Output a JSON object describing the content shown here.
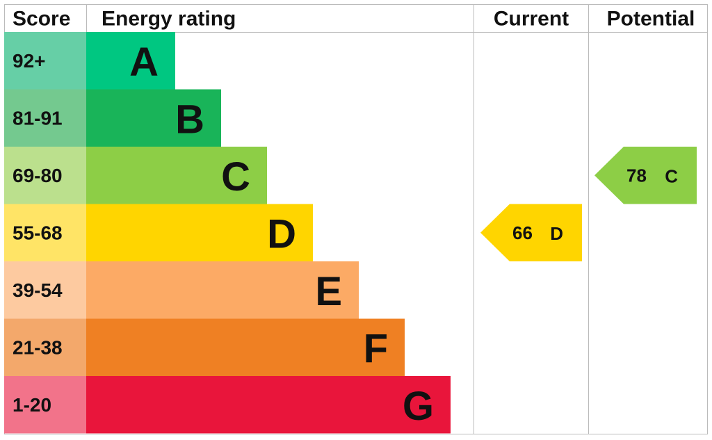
{
  "header": {
    "score": "Score",
    "rating": "Energy rating",
    "current": "Current",
    "potential": "Potential"
  },
  "bands": [
    {
      "score": "92+",
      "letter": "A",
      "color": "#00c781",
      "light": "#66cfa6"
    },
    {
      "score": "81-91",
      "letter": "B",
      "color": "#19b459",
      "light": "#74c98f"
    },
    {
      "score": "69-80",
      "letter": "C",
      "color": "#8dce46",
      "light": "#bbe08d"
    },
    {
      "score": "55-68",
      "letter": "D",
      "color": "#ffd500",
      "light": "#ffe466"
    },
    {
      "score": "39-54",
      "letter": "E",
      "color": "#fcaa65",
      "light": "#fdcaa0"
    },
    {
      "score": "21-38",
      "letter": "F",
      "color": "#ef8023",
      "light": "#f3a86b"
    },
    {
      "score": "1-20",
      "letter": "G",
      "color": "#e9153b",
      "light": "#f2738a"
    }
  ],
  "current": {
    "value": 66,
    "letter": "D"
  },
  "potential": {
    "value": 78,
    "letter": "C"
  }
}
